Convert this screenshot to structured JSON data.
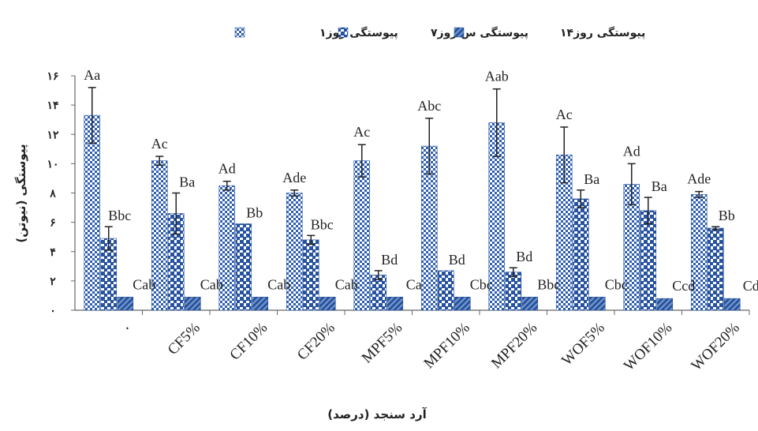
{
  "chart_data": {
    "type": "bar",
    "xlabel": "آرد سنجد (درصد)",
    "ylabel": "پیوستگی (نیوتن)",
    "ylim": [
      0,
      16
    ],
    "yticks": [
      "۰",
      "۲",
      "۴",
      "۶",
      "۸",
      "۱۰",
      "۱۲",
      "۱۴",
      "۱۶"
    ],
    "grid": false,
    "legend_position": "top",
    "categories": [
      "۰",
      "CF5%",
      "CF10%",
      "CF20%",
      "MPF5%",
      "MPF10%",
      "MPF20%",
      "WOF5%",
      "WOF10%",
      "WOF20%"
    ],
    "series": [
      {
        "name": "پیوستگی روز۱",
        "pattern": "checker",
        "color": "#3a69b4",
        "values": [
          13.3,
          10.2,
          8.5,
          8.0,
          10.2,
          11.2,
          12.8,
          10.6,
          8.6,
          7.9
        ],
        "errors": [
          1.9,
          0.3,
          0.3,
          0.2,
          1.1,
          1.9,
          2.3,
          1.9,
          1.4,
          0.2
        ],
        "labels": [
          "Aa",
          "Ac",
          "Ad",
          "Ade",
          "Ac",
          "Abc",
          "Aab",
          "Ac",
          "Ad",
          "Ade"
        ]
      },
      {
        "name": "پیوستگی س روز۷",
        "pattern": "squares",
        "color": "#2b5aa6",
        "values": [
          4.9,
          6.6,
          5.9,
          4.8,
          2.4,
          2.7,
          2.6,
          7.6,
          6.8,
          5.6
        ],
        "errors": [
          0.8,
          1.4,
          0.0,
          0.3,
          0.3,
          0.0,
          0.3,
          0.6,
          0.9,
          0.1
        ],
        "labels": [
          "Bbc",
          "Ba",
          "Bb",
          "Bbc",
          "Bd",
          "Bd",
          "Bd",
          "Ba",
          "Ba",
          "Bb"
        ]
      },
      {
        "name": "پیوستگی روز۱۴",
        "pattern": "stripes",
        "color": "#3d69ad",
        "values": [
          0.9,
          0.9,
          0.9,
          0.9,
          0.9,
          0.9,
          0.9,
          0.9,
          0.8,
          0.8
        ],
        "errors": [
          0,
          0,
          0,
          0,
          0,
          0,
          0,
          0,
          0,
          0
        ],
        "labels": [
          "Cab",
          "Cab",
          "Cab",
          "Cab",
          "Ca",
          "Cbc",
          "Bbc",
          "Cbc",
          "Ccd",
          "Cd"
        ]
      }
    ]
  }
}
